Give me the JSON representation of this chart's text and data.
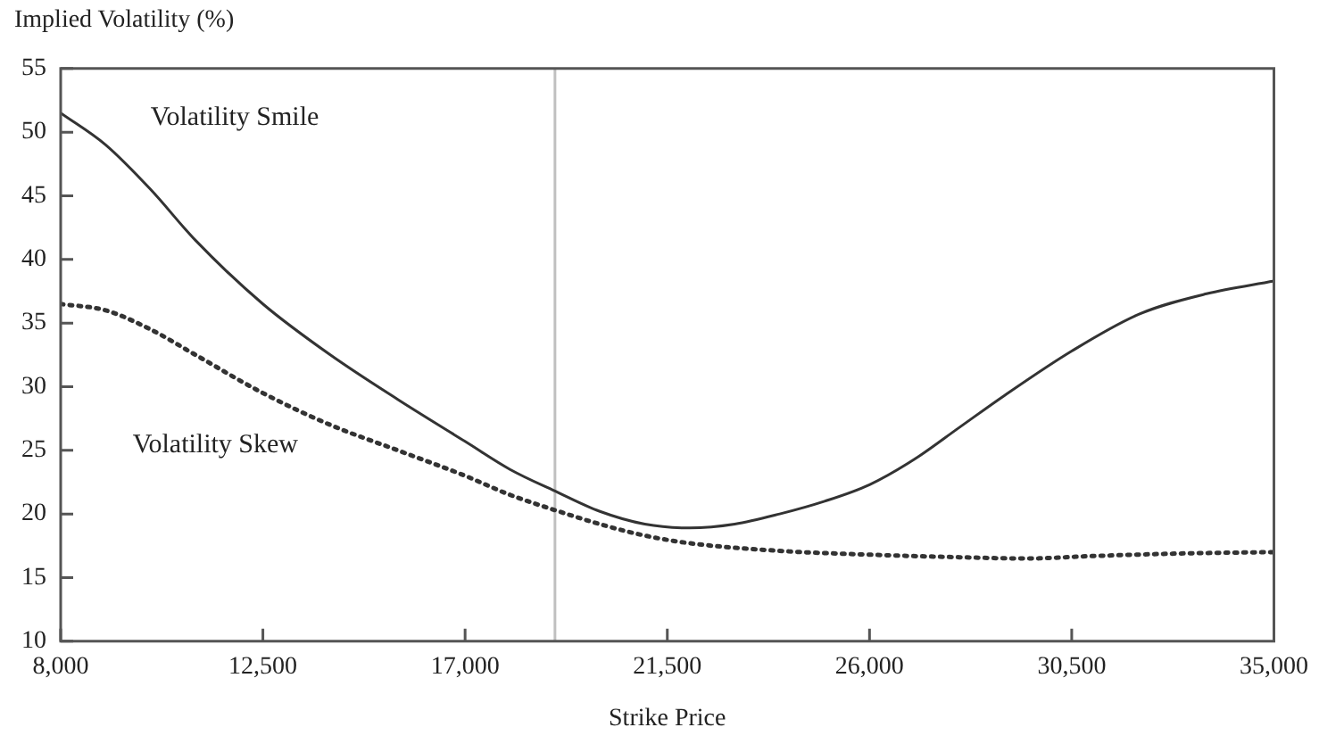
{
  "chart_data": {
    "type": "line",
    "xlabel": "Strike Price",
    "ylabel": "Implied Volatility (%)",
    "xlim": [
      8000,
      35000
    ],
    "xticks": [
      {
        "value": 8000,
        "label": "8,000"
      },
      {
        "value": 12500,
        "label": "12,500"
      },
      {
        "value": 17000,
        "label": "17,000"
      },
      {
        "value": 21500,
        "label": "21,500"
      },
      {
        "value": 26000,
        "label": "26,000"
      },
      {
        "value": 30500,
        "label": "30,500"
      },
      {
        "value": 35000,
        "label": "35,000"
      }
    ],
    "ylim": [
      10,
      55
    ],
    "yticks": [
      10,
      15,
      20,
      25,
      30,
      35,
      40,
      45,
      50,
      55
    ],
    "grid": false,
    "legend": false,
    "marker": "none",
    "ref_lines": [
      {
        "axis": "x",
        "value": 19000,
        "color": "#c0c0c0"
      }
    ],
    "series": [
      {
        "name": "Volatility Smile",
        "color": "#333333",
        "line_style": "solid",
        "x": [
          8000,
          9000,
          10000,
          11000,
          12500,
          14000,
          15500,
          17000,
          18000,
          19000,
          20000,
          21000,
          22000,
          23000,
          24000,
          25000,
          26000,
          27000,
          28000,
          29000,
          30500,
          32000,
          33500,
          35000
        ],
        "values": [
          51.5,
          49,
          45.5,
          41.5,
          36.5,
          32.5,
          29,
          25.7,
          23.5,
          21.8,
          20.2,
          19.2,
          18.9,
          19.2,
          20,
          21,
          22.3,
          24.3,
          26.8,
          29.3,
          32.8,
          35.7,
          37.3,
          38.3
        ]
      },
      {
        "name": "Volatility Skew",
        "color": "#333333",
        "line_style": "dotted",
        "x": [
          8000,
          9000,
          10000,
          11000,
          12500,
          14000,
          15500,
          17000,
          18000,
          19000,
          20000,
          21000,
          22000,
          24000,
          26000,
          28000,
          29500,
          31000,
          33000,
          35000
        ],
        "values": [
          36.5,
          36,
          34.5,
          32.5,
          29.5,
          27,
          25,
          23,
          21.5,
          20.3,
          19.2,
          18.3,
          17.7,
          17.1,
          16.8,
          16.6,
          16.5,
          16.7,
          16.9,
          17.0
        ]
      }
    ]
  }
}
